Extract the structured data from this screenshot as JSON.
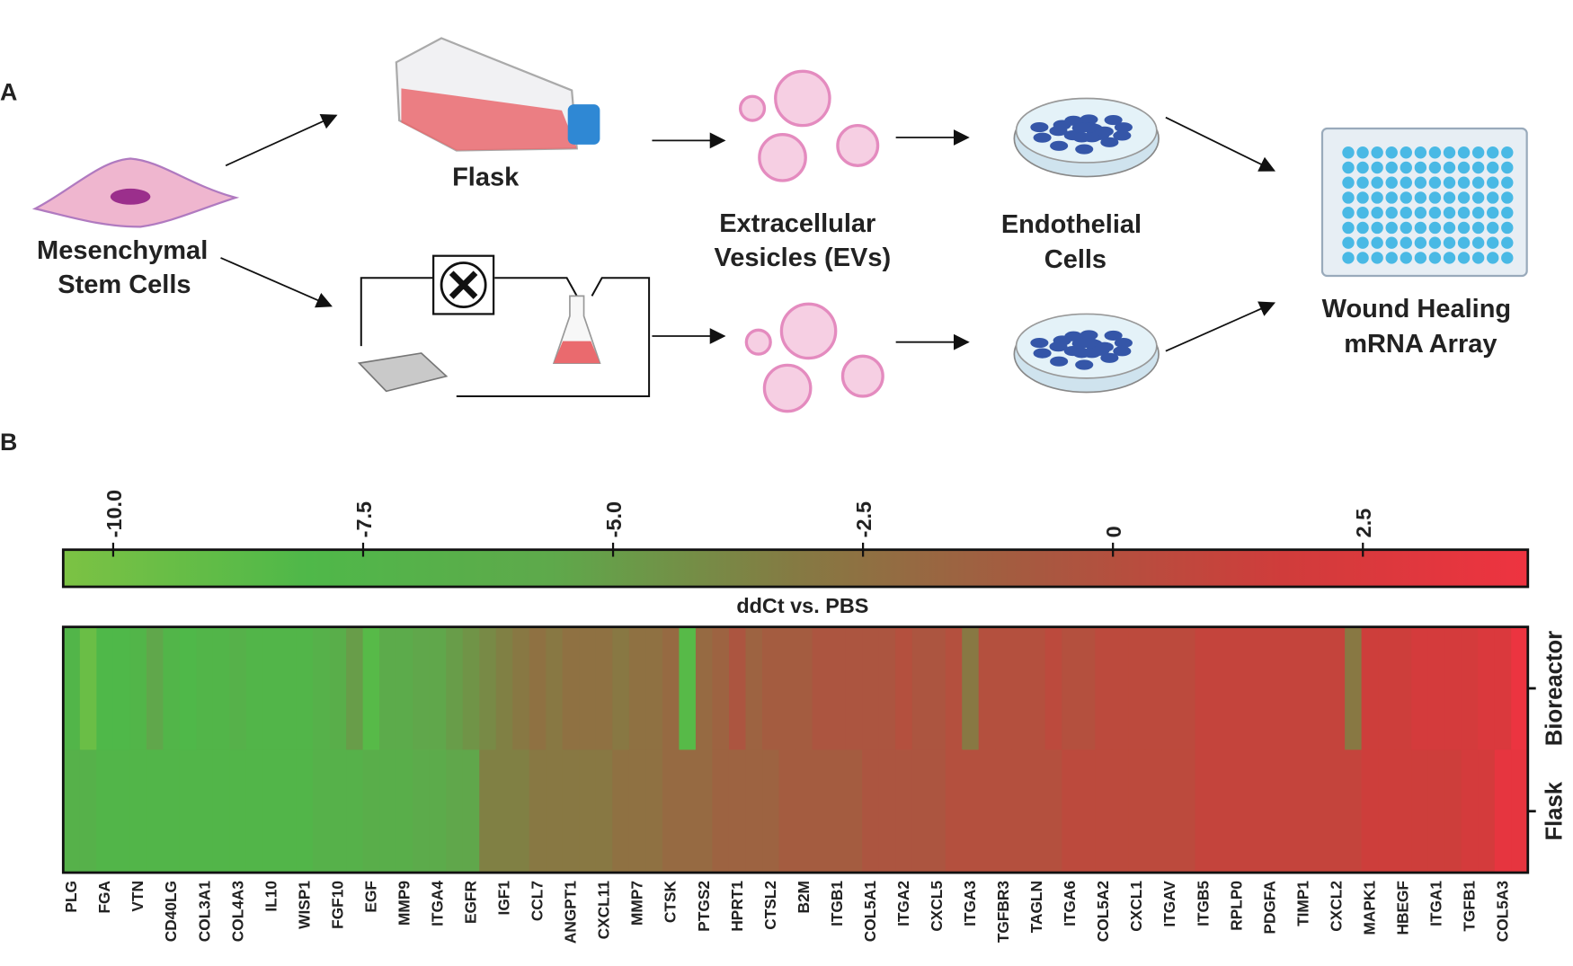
{
  "panel_labels": [
    "A",
    "B"
  ],
  "diagram": {
    "msc": [
      "Mesenchymal",
      "Stem Cells"
    ],
    "flask": "Flask",
    "evs": [
      "Extracellular",
      "Vesicles (EVs)"
    ],
    "endothelial": [
      "Endothelial",
      "Cells"
    ],
    "array": [
      "Wound Healing",
      "mRNA Array"
    ]
  },
  "chart_data": {
    "type": "heatmap",
    "categories": [
      "PLG",
      null,
      "FGA",
      null,
      "VTN",
      null,
      "CD40LG",
      null,
      "COL3A1",
      null,
      "COL4A3",
      null,
      "IL10",
      null,
      "WISP1",
      null,
      "FGF10",
      null,
      "EGF",
      null,
      "MMP9",
      null,
      "ITGA4",
      null,
      "EGFR",
      null,
      "IGF1",
      null,
      "CCL7",
      null,
      "ANGPT1",
      null,
      "CXCL11",
      null,
      "MMP7",
      null,
      "CTSK",
      null,
      "PTGS2",
      null,
      "HPRT1",
      null,
      "CTSL2",
      null,
      "B2M",
      null,
      "ITGB1",
      null,
      "COL5A1",
      null,
      "ITGA2",
      null,
      "CXCL5",
      null,
      "ITGA3",
      null,
      "TGFBR3",
      null,
      "TAGLN",
      null,
      "ITGA6",
      null,
      "COL5A2",
      null,
      "CXCL1",
      null,
      "ITGAV",
      null,
      "ITGB5",
      null,
      "RPLP0",
      null,
      "PDGFA",
      null,
      "TIMP1",
      null,
      "CXCL2",
      null,
      "MAPK1",
      null,
      "HBEGF",
      null,
      "ITGA1",
      null,
      "TGFB1",
      null,
      "COL5A3",
      null
    ],
    "series": [
      {
        "name": "Bioreactor",
        "values": [
          -7.5,
          -9.5,
          -8,
          -8,
          -7.5,
          -5.5,
          -7.5,
          -8,
          -7.5,
          -7.5,
          -7,
          -7.5,
          -7.5,
          -7.5,
          -7.5,
          -7,
          -6.5,
          -5,
          -8.5,
          -6,
          -6,
          -5.5,
          -5.5,
          -5,
          -4.5,
          -4,
          -3.5,
          -3,
          -2.5,
          -3,
          -2.5,
          -2.5,
          -2.5,
          -3,
          -2.5,
          -2.5,
          -2,
          -8.5,
          -2,
          -1.5,
          -0.5,
          -1.5,
          -1,
          -1,
          -1,
          -0.5,
          -0.5,
          -0.5,
          -0.5,
          -0.5,
          0,
          -0.5,
          -0.5,
          0,
          -3,
          0,
          0,
          0,
          0,
          0.5,
          0,
          0,
          0.5,
          0.5,
          0.5,
          0.5,
          0.5,
          0.5,
          1,
          1,
          1,
          1,
          1,
          1,
          1,
          1,
          1,
          -3,
          1.5,
          1.5,
          1.5,
          2,
          2,
          2,
          2,
          2.5,
          2.5,
          4
        ]
      },
      {
        "name": "Flask",
        "values": [
          -7,
          -7,
          -7.5,
          -7.5,
          -7.5,
          -7.5,
          -7.5,
          -7.5,
          -7.5,
          -7.5,
          -7.5,
          -7.5,
          -7.5,
          -7.5,
          -7.5,
          -7,
          -7,
          -7,
          -6.5,
          -6.5,
          -6.5,
          -6,
          -6,
          -5.5,
          -5.5,
          -3.5,
          -3.5,
          -3.5,
          -3,
          -3,
          -3,
          -3,
          -3,
          -2.5,
          -2.5,
          -2.5,
          -2,
          -2,
          -2,
          -1.5,
          -1.5,
          -1.5,
          -1.5,
          -1,
          -1,
          -1,
          -1,
          -1,
          -0.5,
          -0.5,
          -0.5,
          -0.5,
          -0.5,
          0,
          0,
          0,
          0,
          0,
          0,
          0,
          0.5,
          0.5,
          0.5,
          0.5,
          0.5,
          0.5,
          0.5,
          0.5,
          1,
          1,
          1,
          1,
          1,
          1,
          1,
          1,
          1,
          1,
          1.5,
          1.5,
          1.5,
          1.5,
          1.5,
          1.5,
          2,
          2,
          3.5,
          3.5
        ]
      }
    ],
    "zlim": [
      -10.5,
      4.15
    ],
    "zticks": [
      {
        "value": -10,
        "label": "-10.0"
      },
      -7.5,
      {
        "value": -5,
        "label": "-5.0"
      },
      -2.5,
      0,
      2.5
    ],
    "colorbar_label": "ddCt vs. PBS",
    "colorscale": [
      "#7cc244",
      "#4fb849",
      "#5ea94b",
      "#857a43",
      "#a85840",
      "#d03c3b",
      "#ee3340"
    ]
  }
}
